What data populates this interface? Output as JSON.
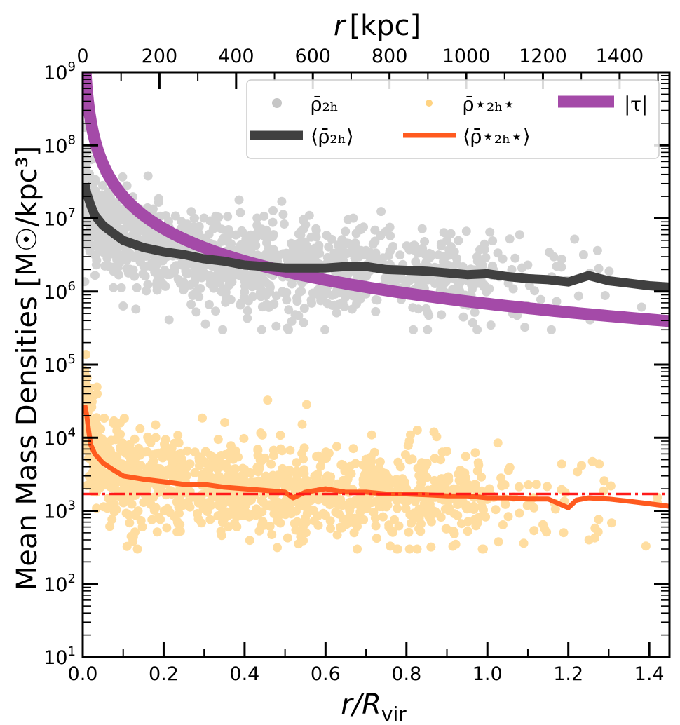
{
  "chart_data": {
    "type": "scatter",
    "xlabel_bottom": "r/R",
    "xlabel_bottom_sub": "vir",
    "xlabel_top": "r",
    "xlabel_top_unit": "[kpc]",
    "ylabel": "Mean Mass Densities [M☉/kpc³]",
    "xlim": [
      0.0,
      1.45
    ],
    "ylim": [
      10,
      1000000000
    ],
    "yscale": "log",
    "x_ticks_bottom": [
      "0.0",
      "0.2",
      "0.4",
      "0.6",
      "0.8",
      "1.0",
      "1.2",
      "1.4"
    ],
    "x_ticks_top": [
      "0",
      "200",
      "400",
      "600",
      "800",
      "1000",
      "1200",
      "1400"
    ],
    "y_tick_exponents": [
      "1",
      "2",
      "3",
      "4",
      "5",
      "6",
      "7",
      "8",
      "9"
    ],
    "legend": {
      "placement": "top-right",
      "entries": [
        {
          "key": "rho2h_scatter",
          "label": "ρ̄₂ₕ",
          "style": "marker",
          "color": "#a0a0a0"
        },
        {
          "key": "rho2hstar_scatter",
          "label": "ρ̄⋆₂ₕ⋆",
          "style": "marker",
          "color": "#ffb52e"
        },
        {
          "key": "tau",
          "label": "|τ|",
          "style": "thick-line",
          "color": "#a44aa8"
        },
        {
          "key": "rho2h_mean",
          "label": "⟨ρ̄₂ₕ⟩",
          "style": "line",
          "color": "#404040"
        },
        {
          "key": "rho2hstar_mean",
          "label": "⟨ρ̄⋆₂ₕ⋆⟩",
          "style": "line",
          "color": "#ff5a1f"
        }
      ]
    },
    "series": [
      {
        "key": "rho2h_mean",
        "color": "#404040",
        "x": [
          0.005,
          0.01,
          0.02,
          0.03,
          0.05,
          0.08,
          0.1,
          0.15,
          0.2,
          0.25,
          0.3,
          0.35,
          0.4,
          0.45,
          0.5,
          0.55,
          0.6,
          0.65,
          0.7,
          0.75,
          0.8,
          0.85,
          0.9,
          0.95,
          1.0,
          1.05,
          1.1,
          1.15,
          1.2,
          1.25,
          1.3,
          1.35,
          1.4,
          1.45
        ],
        "y": [
          30000000,
          22000000,
          15000000,
          11000000,
          8000000,
          6000000,
          5000000,
          4000000,
          3500000,
          3200000,
          2800000,
          2600000,
          2300000,
          2200000,
          2100000,
          2100000,
          2100000,
          2200000,
          2200000,
          2000000,
          1950000,
          1900000,
          1800000,
          1700000,
          1750000,
          1600000,
          1500000,
          1450000,
          1350000,
          1650000,
          1400000,
          1300000,
          1200000,
          1150000
        ]
      },
      {
        "key": "rho2hstar_mean",
        "color": "#ff5a1f",
        "x": [
          0.005,
          0.01,
          0.015,
          0.02,
          0.03,
          0.05,
          0.08,
          0.1,
          0.15,
          0.2,
          0.25,
          0.3,
          0.35,
          0.4,
          0.45,
          0.5,
          0.52,
          0.55,
          0.6,
          0.65,
          0.7,
          0.75,
          0.8,
          0.85,
          0.9,
          0.95,
          1.0,
          1.05,
          1.1,
          1.15,
          1.2,
          1.22,
          1.25,
          1.3,
          1.35,
          1.4,
          1.45
        ],
        "y": [
          28000,
          20000,
          12000,
          8000,
          6000,
          4500,
          3500,
          3000,
          2700,
          2500,
          2300,
          2300,
          2100,
          2000,
          1900,
          1800,
          1500,
          1800,
          2000,
          1800,
          1800,
          1700,
          1700,
          1650,
          1600,
          1600,
          1500,
          1500,
          1450,
          1450,
          1100,
          1400,
          1500,
          1450,
          1350,
          1250,
          1150
        ]
      },
      {
        "key": "tau",
        "color": "#a44aa8",
        "formula": "tau(x) = 6.8e5 * x^-1.47"
      }
    ],
    "reference_line": {
      "key": "threshold",
      "style": "dash-dot",
      "color": "#ff1a1a",
      "y": 1700
    },
    "scatter_note": "Each scatter series holds about 1200 semi-transparent points between x = 0.0 and x = 1.45.",
    "scatter": [
      {
        "key": "rho2h_scatter",
        "color": "#a0a0a0",
        "count": 1200,
        "x_range": [
          0.0,
          1.45
        ],
        "y_range": [
          300000,
          300000000
        ]
      },
      {
        "key": "rho2hstar_scatter",
        "color": "#ffb52e",
        "count": 1200,
        "x_range": [
          0.0,
          1.45
        ],
        "y_range": [
          300,
          450000
        ]
      }
    ]
  }
}
